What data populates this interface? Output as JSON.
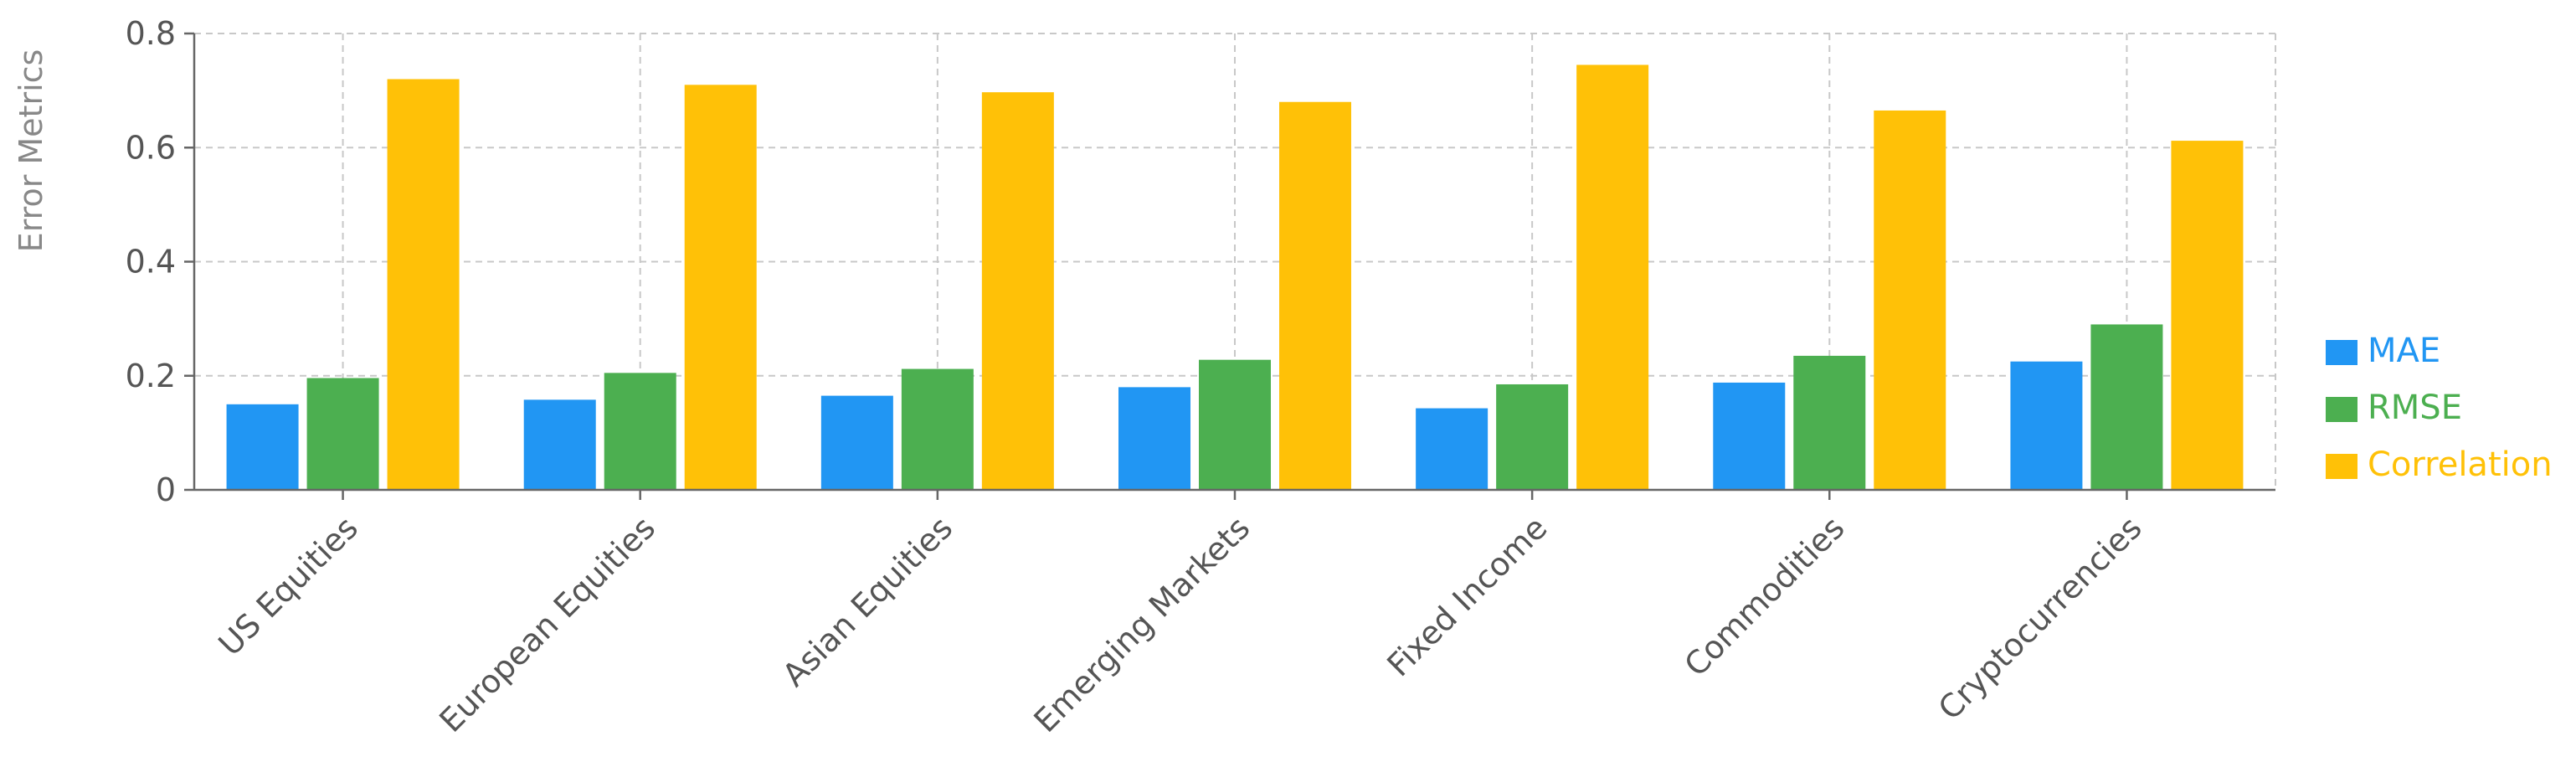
{
  "chart_data": {
    "type": "bar",
    "title": "",
    "xlabel": "",
    "ylabel": "Error Metrics",
    "ylim": [
      0,
      0.8
    ],
    "yticks": [
      0,
      0.2,
      0.4,
      0.6,
      0.8
    ],
    "ytick_labels": [
      "0",
      "0.2",
      "0.4",
      "0.6",
      "0.8"
    ],
    "grid": true,
    "legend_position": "right",
    "categories": [
      "US Equities",
      "European Equities",
      "Asian Equities",
      "Emerging Markets",
      "Fixed Income",
      "Commodities",
      "Cryptocurrencies"
    ],
    "series": [
      {
        "name": "MAE",
        "color": "#2196F3",
        "values": [
          0.15,
          0.158,
          0.165,
          0.18,
          0.143,
          0.188,
          0.225
        ]
      },
      {
        "name": "RMSE",
        "color": "#4CAF50",
        "values": [
          0.196,
          0.205,
          0.212,
          0.228,
          0.185,
          0.235,
          0.29
        ]
      },
      {
        "name": "Correlation",
        "color": "#FFC107",
        "values": [
          0.72,
          0.71,
          0.697,
          0.68,
          0.745,
          0.665,
          0.612
        ]
      }
    ]
  }
}
